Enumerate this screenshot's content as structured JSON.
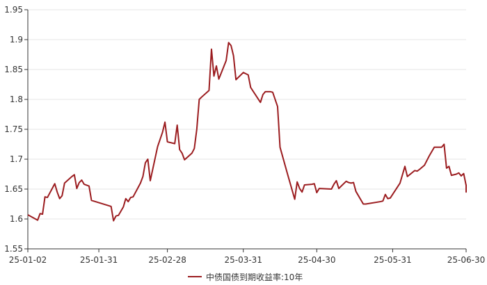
{
  "chart_data": {
    "type": "line",
    "title": "",
    "xlabel": "",
    "ylabel": "",
    "ylim": [
      1.55,
      1.95
    ],
    "y_ticks": [
      "1.55",
      "1.6",
      "1.65",
      "1.7",
      "1.75",
      "1.8",
      "1.85",
      "1.9",
      "1.95"
    ],
    "x_range": [
      "2025-01-02",
      "2025-06-30"
    ],
    "x_ticks": [
      {
        "date": "2025-01-02",
        "label": "25-01-02"
      },
      {
        "date": "2025-01-31",
        "label": "25-01-31"
      },
      {
        "date": "2025-02-28",
        "label": "25-02-28"
      },
      {
        "date": "2025-03-31",
        "label": "25-03-31"
      },
      {
        "date": "2025-04-30",
        "label": "25-04-30"
      },
      {
        "date": "2025-05-31",
        "label": "25-05-31"
      },
      {
        "date": "2025-06-30",
        "label": "25-06-30"
      }
    ],
    "grid": {
      "horizontal": true,
      "vertical": false
    },
    "legend_position": "bottom-center",
    "series": [
      {
        "name": "中债国债到期收益率:10年",
        "color": "#9b1c1f",
        "points": [
          [
            "2025-01-02",
            1.607
          ],
          [
            "2025-01-06",
            1.598
          ],
          [
            "2025-01-07",
            1.609
          ],
          [
            "2025-01-08",
            1.608
          ],
          [
            "2025-01-09",
            1.637
          ],
          [
            "2025-01-10",
            1.636
          ],
          [
            "2025-01-13",
            1.659
          ],
          [
            "2025-01-14",
            1.645
          ],
          [
            "2025-01-15",
            1.634
          ],
          [
            "2025-01-16",
            1.639
          ],
          [
            "2025-01-17",
            1.66
          ],
          [
            "2025-01-20",
            1.671
          ],
          [
            "2025-01-21",
            1.674
          ],
          [
            "2025-01-22",
            1.651
          ],
          [
            "2025-01-23",
            1.661
          ],
          [
            "2025-01-24",
            1.665
          ],
          [
            "2025-01-25",
            1.658
          ],
          [
            "2025-01-27",
            1.655
          ],
          [
            "2025-01-28",
            1.631
          ],
          [
            "2025-02-05",
            1.621
          ],
          [
            "2025-02-06",
            1.597
          ],
          [
            "2025-02-07",
            1.605
          ],
          [
            "2025-02-08",
            1.606
          ],
          [
            "2025-02-10",
            1.62
          ],
          [
            "2025-02-11",
            1.634
          ],
          [
            "2025-02-12",
            1.629
          ],
          [
            "2025-02-13",
            1.636
          ],
          [
            "2025-02-14",
            1.637
          ],
          [
            "2025-02-17",
            1.66
          ],
          [
            "2025-02-18",
            1.671
          ],
          [
            "2025-02-19",
            1.694
          ],
          [
            "2025-02-20",
            1.7
          ],
          [
            "2025-02-21",
            1.664
          ],
          [
            "2025-02-24",
            1.721
          ],
          [
            "2025-02-26",
            1.745
          ],
          [
            "2025-02-27",
            1.762
          ],
          [
            "2025-02-28",
            1.729
          ],
          [
            "2025-03-03",
            1.726
          ],
          [
            "2025-03-04",
            1.757
          ],
          [
            "2025-03-05",
            1.716
          ],
          [
            "2025-03-06",
            1.71
          ],
          [
            "2025-03-07",
            1.699
          ],
          [
            "2025-03-10",
            1.71
          ],
          [
            "2025-03-11",
            1.718
          ],
          [
            "2025-03-12",
            1.75
          ],
          [
            "2025-03-13",
            1.8
          ],
          [
            "2025-03-14",
            1.804
          ],
          [
            "2025-03-17",
            1.815
          ],
          [
            "2025-03-18",
            1.884
          ],
          [
            "2025-03-19",
            1.839
          ],
          [
            "2025-03-20",
            1.856
          ],
          [
            "2025-03-21",
            1.834
          ],
          [
            "2025-03-24",
            1.865
          ],
          [
            "2025-03-25",
            1.895
          ],
          [
            "2025-03-26",
            1.89
          ],
          [
            "2025-03-27",
            1.873
          ],
          [
            "2025-03-28",
            1.833
          ],
          [
            "2025-03-31",
            1.845
          ],
          [
            "2025-04-01",
            1.843
          ],
          [
            "2025-04-02",
            1.841
          ],
          [
            "2025-04-03",
            1.82
          ],
          [
            "2025-04-07",
            1.795
          ],
          [
            "2025-04-08",
            1.808
          ],
          [
            "2025-04-09",
            1.813
          ],
          [
            "2025-04-10",
            1.813
          ],
          [
            "2025-04-11",
            1.813
          ],
          [
            "2025-04-12",
            1.812
          ],
          [
            "2025-04-14",
            1.788
          ],
          [
            "2025-04-15",
            1.72
          ],
          [
            "2025-04-18",
            1.676
          ],
          [
            "2025-04-21",
            1.633
          ],
          [
            "2025-04-22",
            1.662
          ],
          [
            "2025-04-23",
            1.651
          ],
          [
            "2025-04-24",
            1.645
          ],
          [
            "2025-04-25",
            1.657
          ],
          [
            "2025-04-28",
            1.658
          ],
          [
            "2025-04-29",
            1.659
          ],
          [
            "2025-04-30",
            1.644
          ],
          [
            "2025-05-01",
            1.651
          ],
          [
            "2025-05-06",
            1.65
          ],
          [
            "2025-05-07",
            1.658
          ],
          [
            "2025-05-08",
            1.664
          ],
          [
            "2025-05-09",
            1.651
          ],
          [
            "2025-05-12",
            1.663
          ],
          [
            "2025-05-13",
            1.661
          ],
          [
            "2025-05-14",
            1.66
          ],
          [
            "2025-05-15",
            1.661
          ],
          [
            "2025-05-16",
            1.646
          ],
          [
            "2025-05-19",
            1.625
          ],
          [
            "2025-05-20",
            1.625
          ],
          [
            "2025-05-26",
            1.629
          ],
          [
            "2025-05-27",
            1.63
          ],
          [
            "2025-05-28",
            1.641
          ],
          [
            "2025-05-29",
            1.634
          ],
          [
            "2025-05-30",
            1.635
          ],
          [
            "2025-06-03",
            1.66
          ],
          [
            "2025-06-05",
            1.688
          ],
          [
            "2025-06-06",
            1.671
          ],
          [
            "2025-06-09",
            1.681
          ],
          [
            "2025-06-10",
            1.68
          ],
          [
            "2025-06-11",
            1.683
          ],
          [
            "2025-06-13",
            1.69
          ],
          [
            "2025-06-15",
            1.706
          ],
          [
            "2025-06-17",
            1.72
          ],
          [
            "2025-06-19",
            1.72
          ],
          [
            "2025-06-20",
            1.72
          ],
          [
            "2025-06-21",
            1.725
          ],
          [
            "2025-06-22",
            1.685
          ],
          [
            "2025-06-23",
            1.688
          ],
          [
            "2025-06-24",
            1.673
          ],
          [
            "2025-06-26",
            1.675
          ],
          [
            "2025-06-27",
            1.677
          ],
          [
            "2025-06-28",
            1.672
          ],
          [
            "2025-06-29",
            1.676
          ],
          [
            "2025-06-30",
            1.656
          ],
          [
            "2025-06-30",
            1.657
          ],
          [
            "2025-06-30",
            1.657
          ],
          [
            "2025-06-30",
            1.645
          ],
          [
            "2025-06-30",
            1.648
          ],
          [
            "2025-06-30",
            1.645
          ],
          [
            "2025-06-30",
            1.645
          ]
        ]
      }
    ]
  }
}
